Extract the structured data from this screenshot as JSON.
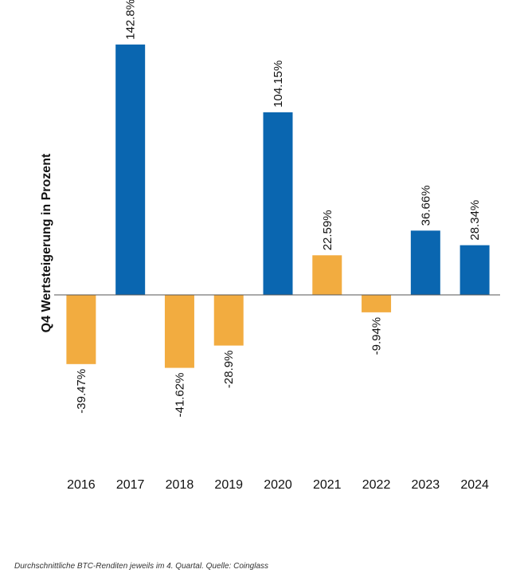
{
  "chart_data": {
    "type": "bar",
    "y_label": "Q4 Wertsteigerung in Prozent",
    "categories": [
      "2016",
      "2017",
      "2018",
      "2019",
      "2020",
      "2021",
      "2022",
      "2023",
      "2024"
    ],
    "values": [
      -39.47,
      142.8,
      -41.62,
      -28.9,
      104.15,
      22.59,
      -9.94,
      36.66,
      28.34
    ],
    "value_labels": [
      "-39.47%",
      "142.8%",
      "-41.62%",
      "-28.9%",
      "104.15%",
      "22.59%",
      "-9.94%",
      "36.66%",
      "28.34%"
    ],
    "colors": [
      "#f2ac40",
      "#0a66b0",
      "#f2ac40",
      "#f2ac40",
      "#0a66b0",
      "#f2ac40",
      "#f2ac40",
      "#0a66b0",
      "#0a66b0"
    ],
    "ylim": [
      -60,
      150
    ]
  },
  "caption": "Durchschnittliche BTC-Renditen jeweils im 4. Quartal. Quelle: Coinglass"
}
